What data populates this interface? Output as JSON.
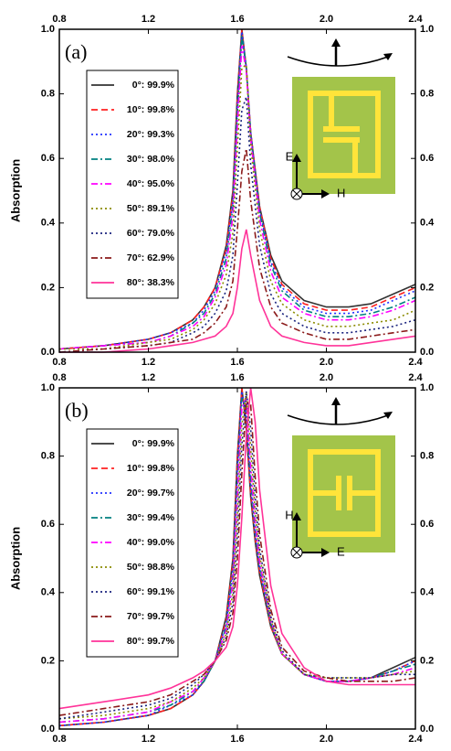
{
  "chart_data": [
    {
      "type": "line",
      "label": "(a)",
      "ylabel": "Absorption",
      "inset_axes": {
        "vertical": "E",
        "horizontal": "H"
      },
      "x": [
        0.8,
        1.0,
        1.2,
        1.3,
        1.4,
        1.45,
        1.5,
        1.55,
        1.58,
        1.6,
        1.62,
        1.64,
        1.66,
        1.7,
        1.75,
        1.8,
        1.9,
        2.0,
        2.1,
        2.2,
        2.3,
        2.4
      ],
      "xlim": [
        0.8,
        2.4
      ],
      "xticks": [
        0.8,
        1.2,
        1.6,
        {
          "value": 2,
          "label": "2.0"
        },
        2.4
      ],
      "ylim": [
        0,
        1
      ],
      "yticks": [
        {
          "value": 0,
          "label": "0.0"
        },
        0.2,
        0.4,
        0.6,
        0.8,
        {
          "value": 1,
          "label": "1.0"
        }
      ],
      "series": [
        {
          "name": "0°: 99.9%",
          "color": "#333333",
          "dash": "solid",
          "values": [
            0.01,
            0.02,
            0.04,
            0.06,
            0.1,
            0.14,
            0.2,
            0.33,
            0.5,
            0.8,
            1.0,
            0.88,
            0.68,
            0.45,
            0.3,
            0.22,
            0.16,
            0.14,
            0.14,
            0.15,
            0.18,
            0.21
          ]
        },
        {
          "name": "10°: 99.8%",
          "color": "#ff2020",
          "dash": "dashed",
          "values": [
            0.01,
            0.02,
            0.04,
            0.06,
            0.1,
            0.14,
            0.2,
            0.32,
            0.49,
            0.79,
            0.998,
            0.88,
            0.68,
            0.45,
            0.29,
            0.21,
            0.15,
            0.13,
            0.13,
            0.14,
            0.17,
            0.2
          ]
        },
        {
          "name": "20°: 99.3%",
          "color": "#2030ff",
          "dash": "dotted",
          "values": [
            0.01,
            0.02,
            0.04,
            0.06,
            0.09,
            0.13,
            0.19,
            0.31,
            0.47,
            0.77,
            0.993,
            0.88,
            0.68,
            0.44,
            0.28,
            0.2,
            0.14,
            0.12,
            0.12,
            0.13,
            0.16,
            0.19
          ]
        },
        {
          "name": "30°: 98.0%",
          "color": "#008080",
          "dash": "dashdot",
          "values": [
            0.01,
            0.02,
            0.03,
            0.05,
            0.09,
            0.12,
            0.18,
            0.29,
            0.45,
            0.74,
            0.98,
            0.88,
            0.67,
            0.43,
            0.27,
            0.19,
            0.13,
            0.11,
            0.11,
            0.12,
            0.14,
            0.17
          ]
        },
        {
          "name": "40°: 95.0%",
          "color": "#ff00ff",
          "dash": "dashdot",
          "values": [
            0.01,
            0.02,
            0.03,
            0.05,
            0.08,
            0.11,
            0.17,
            0.27,
            0.42,
            0.7,
            0.95,
            0.87,
            0.66,
            0.41,
            0.25,
            0.17,
            0.12,
            0.1,
            0.1,
            0.11,
            0.13,
            0.16
          ]
        },
        {
          "name": "50°: 89.1%",
          "color": "#8b8b00",
          "dash": "dotted",
          "values": [
            0.01,
            0.01,
            0.03,
            0.04,
            0.07,
            0.1,
            0.15,
            0.24,
            0.37,
            0.63,
            0.88,
            0.89,
            0.64,
            0.38,
            0.22,
            0.15,
            0.1,
            0.08,
            0.08,
            0.09,
            0.1,
            0.13
          ]
        },
        {
          "name": "60°: 79.0%",
          "color": "#1a237e",
          "dash": "dotted",
          "values": [
            0.0,
            0.01,
            0.02,
            0.03,
            0.06,
            0.08,
            0.12,
            0.19,
            0.3,
            0.52,
            0.75,
            0.79,
            0.58,
            0.33,
            0.18,
            0.12,
            0.08,
            0.06,
            0.06,
            0.07,
            0.08,
            0.1
          ]
        },
        {
          "name": "70°: 62.9%",
          "color": "#8b1a1a",
          "dash": "dashdot",
          "values": [
            0.0,
            0.01,
            0.02,
            0.03,
            0.04,
            0.06,
            0.09,
            0.14,
            0.22,
            0.38,
            0.56,
            0.63,
            0.47,
            0.26,
            0.14,
            0.09,
            0.06,
            0.04,
            0.04,
            0.05,
            0.06,
            0.07
          ]
        },
        {
          "name": "80°: 38.3%",
          "color": "#ff3399",
          "dash": "solid",
          "values": [
            0.0,
            0.0,
            0.01,
            0.02,
            0.03,
            0.04,
            0.05,
            0.08,
            0.12,
            0.2,
            0.32,
            0.38,
            0.3,
            0.16,
            0.08,
            0.05,
            0.03,
            0.02,
            0.02,
            0.03,
            0.04,
            0.05
          ]
        }
      ]
    },
    {
      "type": "line",
      "label": "(b)",
      "ylabel": "Absorption",
      "inset_axes": {
        "vertical": "H",
        "horizontal": "E"
      },
      "x": [
        0.8,
        1.0,
        1.2,
        1.3,
        1.4,
        1.45,
        1.5,
        1.55,
        1.58,
        1.6,
        1.62,
        1.64,
        1.66,
        1.68,
        1.7,
        1.75,
        1.8,
        1.9,
        2.0,
        2.1,
        2.2,
        2.3,
        2.4
      ],
      "xlim": [
        0.8,
        2.4
      ],
      "xticks": [
        0.8,
        1.2,
        1.6,
        {
          "value": 2,
          "label": "2.0"
        },
        2.4
      ],
      "ylim": [
        0,
        1
      ],
      "yticks": [
        {
          "value": 0,
          "label": "0.0"
        },
        0.2,
        0.4,
        0.6,
        0.8,
        {
          "value": 1,
          "label": "1.0"
        }
      ],
      "series": [
        {
          "name": "0°: 99.9%",
          "color": "#333333",
          "dash": "solid",
          "values": [
            0.01,
            0.02,
            0.04,
            0.06,
            0.1,
            0.14,
            0.2,
            0.33,
            0.5,
            0.8,
            1.0,
            0.88,
            0.68,
            0.55,
            0.45,
            0.3,
            0.22,
            0.16,
            0.14,
            0.14,
            0.15,
            0.18,
            0.21
          ]
        },
        {
          "name": "10°: 99.8%",
          "color": "#ff2020",
          "dash": "dashed",
          "values": [
            0.01,
            0.02,
            0.04,
            0.06,
            0.1,
            0.14,
            0.2,
            0.32,
            0.49,
            0.79,
            0.998,
            0.89,
            0.69,
            0.56,
            0.46,
            0.3,
            0.22,
            0.16,
            0.14,
            0.14,
            0.15,
            0.17,
            0.2
          ]
        },
        {
          "name": "20°: 99.7%",
          "color": "#2030ff",
          "dash": "dotted",
          "values": [
            0.01,
            0.02,
            0.04,
            0.07,
            0.1,
            0.14,
            0.2,
            0.31,
            0.47,
            0.76,
            0.99,
            0.91,
            0.71,
            0.57,
            0.47,
            0.31,
            0.22,
            0.16,
            0.14,
            0.14,
            0.15,
            0.17,
            0.2
          ]
        },
        {
          "name": "30°: 99.4%",
          "color": "#008080",
          "dash": "dashdot",
          "values": [
            0.02,
            0.03,
            0.05,
            0.07,
            0.11,
            0.14,
            0.2,
            0.3,
            0.45,
            0.72,
            0.97,
            0.94,
            0.74,
            0.59,
            0.48,
            0.31,
            0.22,
            0.16,
            0.14,
            0.14,
            0.15,
            0.17,
            0.19
          ]
        },
        {
          "name": "40°: 99.0%",
          "color": "#ff00ff",
          "dash": "dashdot",
          "values": [
            0.02,
            0.03,
            0.05,
            0.08,
            0.11,
            0.15,
            0.2,
            0.29,
            0.43,
            0.68,
            0.94,
            0.97,
            0.77,
            0.61,
            0.49,
            0.32,
            0.22,
            0.16,
            0.14,
            0.14,
            0.15,
            0.16,
            0.18
          ]
        },
        {
          "name": "50°: 98.8%",
          "color": "#8b8b00",
          "dash": "dotted",
          "values": [
            0.03,
            0.04,
            0.06,
            0.08,
            0.12,
            0.15,
            0.2,
            0.28,
            0.4,
            0.63,
            0.89,
            0.99,
            0.82,
            0.64,
            0.51,
            0.32,
            0.22,
            0.16,
            0.15,
            0.15,
            0.15,
            0.16,
            0.17
          ]
        },
        {
          "name": "60°: 99.1%",
          "color": "#1a237e",
          "dash": "dotted",
          "values": [
            0.03,
            0.05,
            0.07,
            0.09,
            0.13,
            0.16,
            0.2,
            0.27,
            0.37,
            0.57,
            0.83,
            0.99,
            0.88,
            0.68,
            0.53,
            0.33,
            0.23,
            0.16,
            0.15,
            0.15,
            0.15,
            0.16,
            0.16
          ]
        },
        {
          "name": "70°: 99.7%",
          "color": "#8b1a1a",
          "dash": "dashdot",
          "values": [
            0.04,
            0.06,
            0.08,
            0.1,
            0.14,
            0.16,
            0.2,
            0.26,
            0.34,
            0.5,
            0.75,
            0.96,
            0.95,
            0.74,
            0.57,
            0.35,
            0.24,
            0.17,
            0.15,
            0.14,
            0.14,
            0.14,
            0.15
          ]
        },
        {
          "name": "80°: 99.7%",
          "color": "#ff3399",
          "dash": "solid",
          "values": [
            0.06,
            0.08,
            0.1,
            0.12,
            0.15,
            0.17,
            0.2,
            0.24,
            0.3,
            0.42,
            0.62,
            0.86,
            1.0,
            0.9,
            0.7,
            0.42,
            0.28,
            0.18,
            0.14,
            0.13,
            0.13,
            0.13,
            0.13
          ]
        }
      ]
    }
  ]
}
